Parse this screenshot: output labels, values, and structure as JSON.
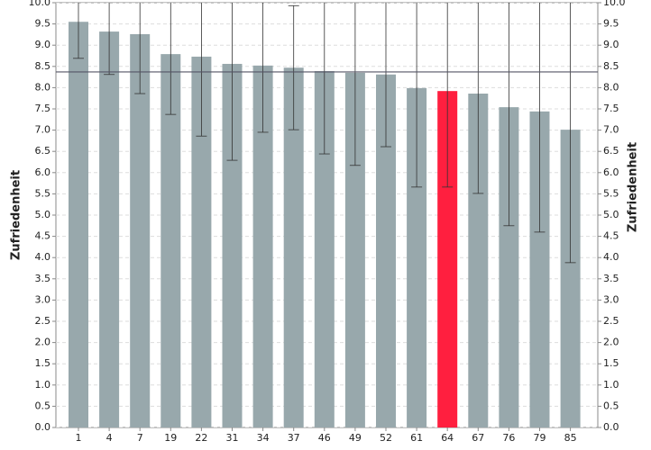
{
  "chart_data": {
    "type": "bar",
    "y_label": "Zufriedenheit",
    "categories": [
      "1",
      "4",
      "7",
      "19",
      "22",
      "31",
      "34",
      "37",
      "46",
      "49",
      "52",
      "61",
      "64",
      "67",
      "76",
      "79",
      "85"
    ],
    "values": [
      9.55,
      9.32,
      9.26,
      8.79,
      8.73,
      8.56,
      8.52,
      8.47,
      8.39,
      8.35,
      8.31,
      7.99,
      7.92,
      7.86,
      7.54,
      7.44,
      7.01
    ],
    "errors": [
      0.86,
      1.01,
      1.4,
      1.42,
      1.87,
      2.27,
      1.57,
      1.46,
      1.95,
      2.18,
      1.7,
      2.33,
      2.26,
      2.35,
      2.79,
      2.84,
      3.13
    ],
    "colors": [
      "#98a8ac",
      "#98a8ac",
      "#98a8ac",
      "#98a8ac",
      "#98a8ac",
      "#98a8ac",
      "#98a8ac",
      "#98a8ac",
      "#98a8ac",
      "#98a8ac",
      "#98a8ac",
      "#98a8ac",
      "#ff1f3f",
      "#98a8ac",
      "#98a8ac",
      "#98a8ac",
      "#98a8ac"
    ],
    "reference_line": 8.37,
    "ylim": [
      0,
      10
    ],
    "yticks": [
      {
        "value": 0,
        "label": "0.0"
      },
      0.5,
      {
        "value": 1,
        "label": "1.0"
      },
      1.5,
      {
        "value": 2,
        "label": "2.0"
      },
      2.5,
      {
        "value": 3,
        "label": "3.0"
      },
      3.5,
      {
        "value": 4,
        "label": "4.0"
      },
      4.5,
      {
        "value": 5,
        "label": "5.0"
      },
      5.5,
      {
        "value": 6,
        "label": "6.0"
      },
      6.5,
      {
        "value": 7,
        "label": "7.0"
      },
      7.5,
      {
        "value": 8,
        "label": "8.0"
      },
      8.5,
      {
        "value": 9,
        "label": "9.0"
      },
      9.5,
      {
        "value": 10,
        "label": "10.0"
      }
    ],
    "grid": true
  }
}
